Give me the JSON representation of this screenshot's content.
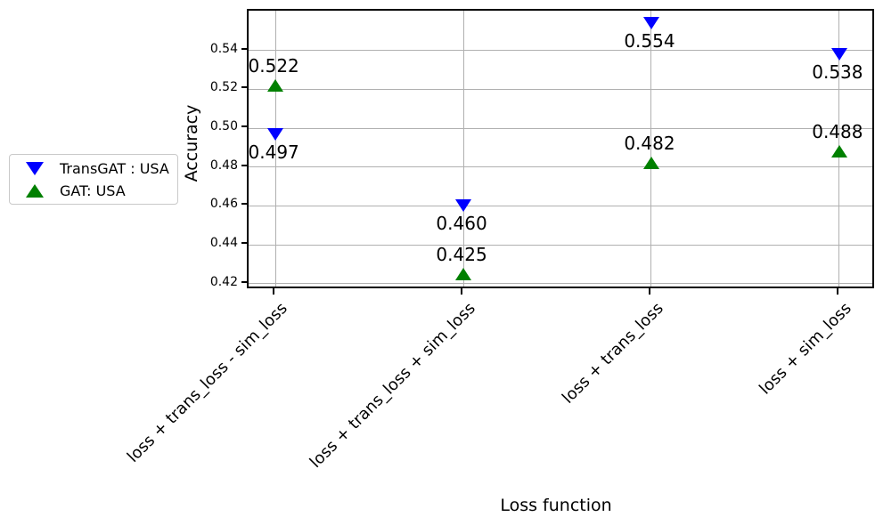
{
  "chart_data": {
    "type": "scatter",
    "xlabel": "Loss function",
    "ylabel": "Accuracy",
    "categories": [
      "loss + trans_loss - sim_loss",
      "loss + trans_loss + sim_loss",
      "loss + trans_loss",
      "loss + sim_loss"
    ],
    "series": [
      {
        "name": "TransGAT : USA",
        "marker": "triangle-down",
        "color": "#0000ff",
        "values": [
          0.497,
          0.46,
          0.554,
          0.538
        ],
        "value_labels": [
          "0.497",
          "0.460",
          "0.554",
          "0.538"
        ],
        "label_position": "below"
      },
      {
        "name": "GAT: USA",
        "marker": "triangle-up",
        "color": "#008000",
        "values": [
          0.522,
          0.425,
          0.482,
          0.488
        ],
        "value_labels": [
          "0.522",
          "0.425",
          "0.482",
          "0.488"
        ],
        "label_position": "above"
      }
    ],
    "yticks": [
      {
        "value": 0.42,
        "label": "0.42"
      },
      {
        "value": 0.44,
        "label": "0.44"
      },
      {
        "value": 0.46,
        "label": "0.46"
      },
      {
        "value": 0.48,
        "label": "0.48"
      },
      {
        "value": 0.5,
        "label": "0.50"
      },
      {
        "value": 0.52,
        "label": "0.52"
      },
      {
        "value": 0.54,
        "label": "0.54"
      }
    ],
    "ylim": [
      0.4186,
      0.5604
    ],
    "xlim": [
      -0.143,
      3.176
    ],
    "grid": true,
    "grid_color": "#b0b0b0",
    "legend_position": "outside-left"
  }
}
